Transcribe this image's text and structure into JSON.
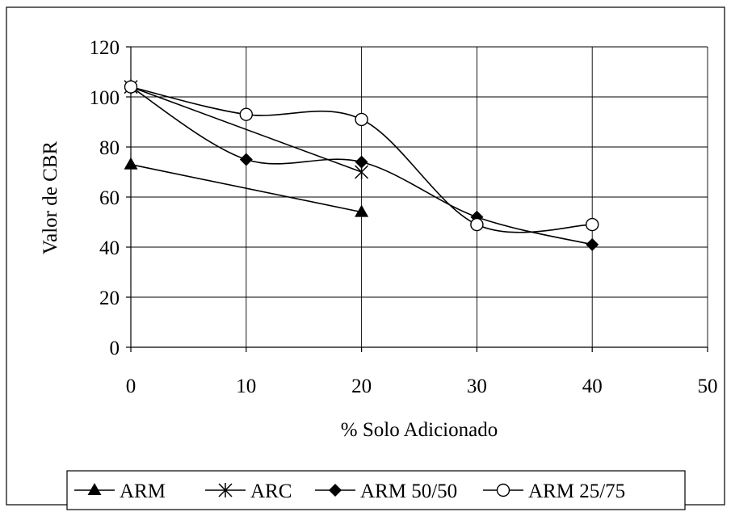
{
  "chart_data": {
    "type": "line",
    "title": "",
    "xlabel": "% Solo Adicionado",
    "ylabel": "Valor de CBR",
    "xlim": [
      0,
      50
    ],
    "ylim": [
      0,
      120
    ],
    "x_ticks": [
      0,
      10,
      20,
      30,
      40,
      50
    ],
    "y_ticks": [
      0,
      20,
      40,
      60,
      80,
      100,
      120
    ],
    "grid": true,
    "smoothed": true,
    "legend_position": "bottom",
    "series": [
      {
        "name": "ARM",
        "marker": "filled-triangle",
        "color": "#000000",
        "x": [
          0,
          20
        ],
        "y": [
          73,
          54
        ]
      },
      {
        "name": "ARC",
        "marker": "asterisk",
        "color": "#000000",
        "x": [
          0,
          20
        ],
        "y": [
          104,
          70
        ]
      },
      {
        "name": "ARM 50/50",
        "marker": "filled-diamond",
        "color": "#000000",
        "x": [
          0,
          10,
          20,
          30,
          40
        ],
        "y": [
          104,
          75,
          74,
          52,
          41
        ]
      },
      {
        "name": "ARM 25/75",
        "marker": "open-circle",
        "color": "#000000",
        "x": [
          0,
          10,
          20,
          30,
          40
        ],
        "y": [
          104,
          93,
          91,
          49,
          49
        ]
      }
    ]
  }
}
